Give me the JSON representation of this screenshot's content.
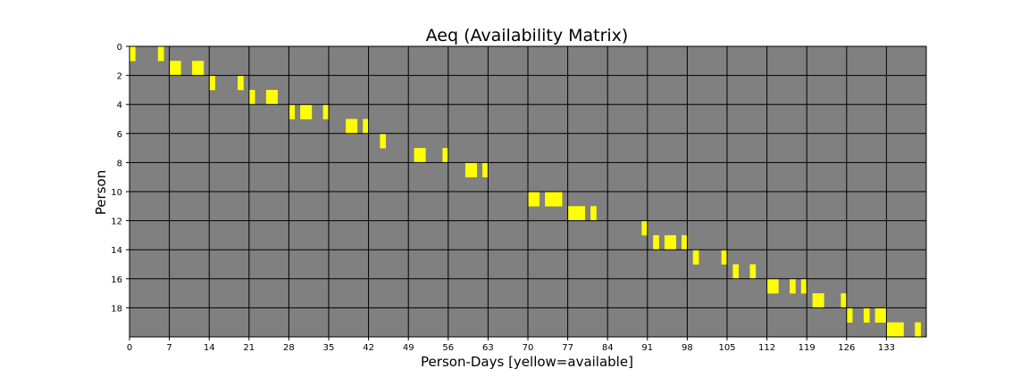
{
  "chart_data": {
    "type": "heatmap",
    "title": "Aeq (Availability Matrix)",
    "xlabel": "Person-Days [yellow=available]",
    "ylabel": "Person",
    "xlim": [
      0,
      140
    ],
    "ylim": [
      0,
      20
    ],
    "x_ticks": [
      0,
      7,
      14,
      21,
      28,
      35,
      42,
      49,
      56,
      63,
      70,
      77,
      84,
      91,
      98,
      105,
      112,
      119,
      126,
      133
    ],
    "y_ticks": [
      0,
      2,
      4,
      6,
      8,
      10,
      12,
      14,
      16,
      18
    ],
    "grid": true,
    "colors": {
      "available": "#ffff00",
      "unavailable": "#808080",
      "grid": "#000000"
    },
    "available_cells": [
      {
        "person": 0,
        "days": [
          0,
          5
        ]
      },
      {
        "person": 1,
        "days": [
          7,
          8,
          11,
          12
        ]
      },
      {
        "person": 2,
        "days": [
          14,
          19
        ]
      },
      {
        "person": 3,
        "days": [
          21,
          24,
          25
        ]
      },
      {
        "person": 4,
        "days": [
          28,
          30,
          31,
          34
        ]
      },
      {
        "person": 5,
        "days": [
          38,
          39,
          41
        ]
      },
      {
        "person": 6,
        "days": [
          44
        ]
      },
      {
        "person": 7,
        "days": [
          50,
          51,
          55
        ]
      },
      {
        "person": 8,
        "days": [
          59,
          60,
          62
        ]
      },
      {
        "person": 10,
        "days": [
          70,
          71,
          73,
          74,
          75
        ]
      },
      {
        "person": 11,
        "days": [
          77,
          78,
          79,
          81
        ]
      },
      {
        "person": 12,
        "days": [
          90
        ]
      },
      {
        "person": 13,
        "days": [
          92,
          94,
          95,
          97
        ]
      },
      {
        "person": 14,
        "days": [
          99,
          104
        ]
      },
      {
        "person": 15,
        "days": [
          106,
          109
        ]
      },
      {
        "person": 16,
        "days": [
          112,
          113,
          116,
          118
        ]
      },
      {
        "person": 17,
        "days": [
          120,
          121,
          125
        ]
      },
      {
        "person": 18,
        "days": [
          126,
          129,
          131,
          132
        ]
      },
      {
        "person": 19,
        "days": [
          133,
          134,
          135,
          138
        ]
      }
    ]
  }
}
